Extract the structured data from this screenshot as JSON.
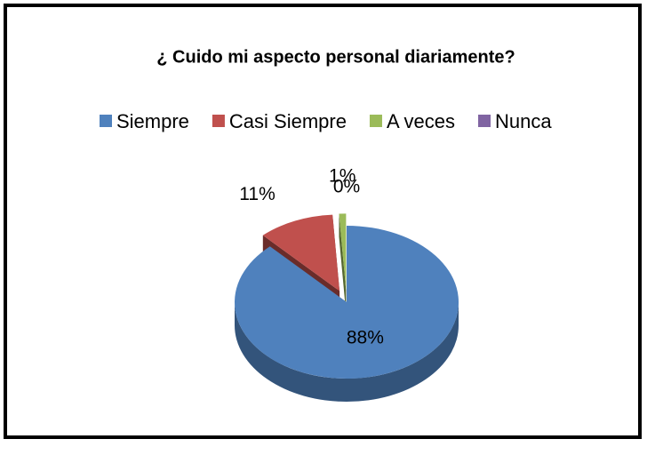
{
  "chart_data": {
    "type": "pie",
    "title": "¿ Cuido mi aspecto personal diariamente?",
    "categories": [
      "Siempre",
      "Casi Siempre",
      "A veces",
      "Nunca"
    ],
    "values": [
      88,
      11,
      1,
      0
    ],
    "value_labels": [
      "88%",
      "11%",
      "1%",
      "0%"
    ],
    "colors": [
      "#4f81bd",
      "#c0504d",
      "#9bbb59",
      "#8064a2"
    ],
    "legend": "top"
  }
}
